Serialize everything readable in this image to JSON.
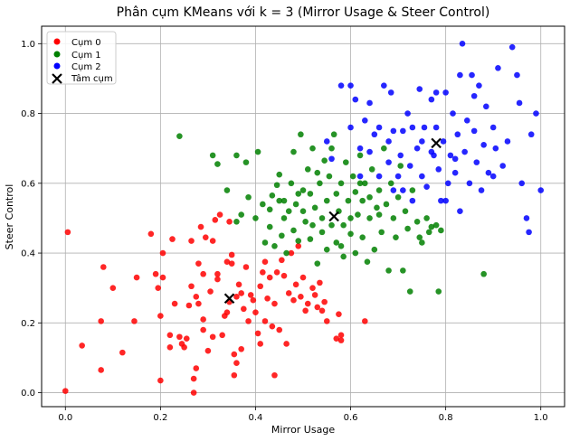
{
  "chart_data": {
    "type": "scatter",
    "title": "Phân cụm KMeans với k = 3 (Mirror Usage & Steer Control)",
    "xlabel": "Mirror Usage",
    "ylabel": "Steer Control",
    "xlim": [
      -0.05,
      1.05
    ],
    "ylim": [
      -0.04,
      1.05
    ],
    "xticks": [
      "0.0",
      "0.2",
      "0.4",
      "0.6",
      "0.8",
      "1.0"
    ],
    "yticks": [
      "0.0",
      "0.2",
      "0.4",
      "0.6",
      "0.8",
      "1.0"
    ],
    "grid": true,
    "legend_position": "top-left",
    "series": [
      {
        "name": "Cụm 0",
        "color": "#ff0000",
        "points": [
          [
            0.0,
            0.005
          ],
          [
            0.005,
            0.46
          ],
          [
            0.035,
            0.135
          ],
          [
            0.075,
            0.065
          ],
          [
            0.075,
            0.205
          ],
          [
            0.08,
            0.36
          ],
          [
            0.1,
            0.3
          ],
          [
            0.12,
            0.115
          ],
          [
            0.145,
            0.205
          ],
          [
            0.15,
            0.33
          ],
          [
            0.18,
            0.455
          ],
          [
            0.19,
            0.34
          ],
          [
            0.195,
            0.3
          ],
          [
            0.2,
            0.035
          ],
          [
            0.2,
            0.22
          ],
          [
            0.205,
            0.33
          ],
          [
            0.205,
            0.4
          ],
          [
            0.22,
            0.13
          ],
          [
            0.22,
            0.165
          ],
          [
            0.225,
            0.44
          ],
          [
            0.23,
            0.255
          ],
          [
            0.24,
            0.16
          ],
          [
            0.245,
            0.14
          ],
          [
            0.25,
            0.13
          ],
          [
            0.255,
            0.155
          ],
          [
            0.26,
            0.25
          ],
          [
            0.265,
            0.435
          ],
          [
            0.265,
            0.305
          ],
          [
            0.27,
            0.04
          ],
          [
            0.27,
            0.0
          ],
          [
            0.275,
            0.275
          ],
          [
            0.275,
            0.07
          ],
          [
            0.28,
            0.255
          ],
          [
            0.28,
            0.37
          ],
          [
            0.285,
            0.475
          ],
          [
            0.29,
            0.34
          ],
          [
            0.29,
            0.21
          ],
          [
            0.29,
            0.18
          ],
          [
            0.295,
            0.445
          ],
          [
            0.3,
            0.12
          ],
          [
            0.305,
            0.29
          ],
          [
            0.31,
            0.435
          ],
          [
            0.31,
            0.16
          ],
          [
            0.315,
            0.495
          ],
          [
            0.32,
            0.34
          ],
          [
            0.32,
            0.325
          ],
          [
            0.325,
            0.51
          ],
          [
            0.33,
            0.165
          ],
          [
            0.335,
            0.22
          ],
          [
            0.34,
            0.23
          ],
          [
            0.345,
            0.26
          ],
          [
            0.345,
            0.49
          ],
          [
            0.35,
            0.395
          ],
          [
            0.35,
            0.37
          ],
          [
            0.355,
            0.05
          ],
          [
            0.355,
            0.11
          ],
          [
            0.36,
            0.085
          ],
          [
            0.36,
            0.275
          ],
          [
            0.365,
            0.31
          ],
          [
            0.37,
            0.285
          ],
          [
            0.37,
            0.125
          ],
          [
            0.375,
            0.24
          ],
          [
            0.38,
            0.36
          ],
          [
            0.385,
            0.205
          ],
          [
            0.39,
            0.28
          ],
          [
            0.395,
            0.265
          ],
          [
            0.4,
            0.23
          ],
          [
            0.405,
            0.17
          ],
          [
            0.41,
            0.305
          ],
          [
            0.41,
            0.14
          ],
          [
            0.415,
            0.345
          ],
          [
            0.42,
            0.375
          ],
          [
            0.42,
            0.205
          ],
          [
            0.425,
            0.27
          ],
          [
            0.43,
            0.33
          ],
          [
            0.435,
            0.19
          ],
          [
            0.44,
            0.255
          ],
          [
            0.44,
            0.05
          ],
          [
            0.445,
            0.345
          ],
          [
            0.45,
            0.18
          ],
          [
            0.455,
            0.38
          ],
          [
            0.46,
            0.335
          ],
          [
            0.465,
            0.14
          ],
          [
            0.47,
            0.285
          ],
          [
            0.475,
            0.4
          ],
          [
            0.48,
            0.265
          ],
          [
            0.485,
            0.31
          ],
          [
            0.49,
            0.42
          ],
          [
            0.495,
            0.275
          ],
          [
            0.5,
            0.33
          ],
          [
            0.505,
            0.235
          ],
          [
            0.51,
            0.255
          ],
          [
            0.52,
            0.3
          ],
          [
            0.525,
            0.28
          ],
          [
            0.53,
            0.245
          ],
          [
            0.535,
            0.315
          ],
          [
            0.54,
            0.235
          ],
          [
            0.545,
            0.26
          ],
          [
            0.55,
            0.205
          ],
          [
            0.575,
            0.225
          ],
          [
            0.57,
            0.155
          ],
          [
            0.58,
            0.165
          ],
          [
            0.58,
            0.15
          ],
          [
            0.63,
            0.205
          ],
          [
            0.34,
            0.375
          ]
        ]
      },
      {
        "name": "Cụm 1",
        "color": "#008000",
        "points": [
          [
            0.24,
            0.735
          ],
          [
            0.31,
            0.68
          ],
          [
            0.32,
            0.655
          ],
          [
            0.34,
            0.58
          ],
          [
            0.36,
            0.68
          ],
          [
            0.36,
            0.49
          ],
          [
            0.37,
            0.51
          ],
          [
            0.38,
            0.66
          ],
          [
            0.385,
            0.56
          ],
          [
            0.4,
            0.5
          ],
          [
            0.405,
            0.69
          ],
          [
            0.415,
            0.54
          ],
          [
            0.42,
            0.43
          ],
          [
            0.43,
            0.475
          ],
          [
            0.43,
            0.525
          ],
          [
            0.435,
            0.565
          ],
          [
            0.44,
            0.42
          ],
          [
            0.445,
            0.595
          ],
          [
            0.45,
            0.625
          ],
          [
            0.455,
            0.45
          ],
          [
            0.46,
            0.5
          ],
          [
            0.46,
            0.55
          ],
          [
            0.465,
            0.4
          ],
          [
            0.47,
            0.52
          ],
          [
            0.475,
            0.6
          ],
          [
            0.48,
            0.465
          ],
          [
            0.48,
            0.69
          ],
          [
            0.485,
            0.54
          ],
          [
            0.49,
            0.435
          ],
          [
            0.49,
            0.57
          ],
          [
            0.495,
            0.74
          ],
          [
            0.5,
            0.58
          ],
          [
            0.5,
            0.52
          ],
          [
            0.505,
            0.49
          ],
          [
            0.51,
            0.64
          ],
          [
            0.515,
            0.44
          ],
          [
            0.515,
            0.57
          ],
          [
            0.52,
            0.7
          ],
          [
            0.525,
            0.53
          ],
          [
            0.53,
            0.63
          ],
          [
            0.53,
            0.37
          ],
          [
            0.535,
            0.6
          ],
          [
            0.54,
            0.5
          ],
          [
            0.54,
            0.46
          ],
          [
            0.545,
            0.665
          ],
          [
            0.55,
            0.55
          ],
          [
            0.55,
            0.41
          ],
          [
            0.555,
            0.62
          ],
          [
            0.56,
            0.7
          ],
          [
            0.56,
            0.48
          ],
          [
            0.565,
            0.74
          ],
          [
            0.57,
            0.57
          ],
          [
            0.57,
            0.43
          ],
          [
            0.575,
            0.52
          ],
          [
            0.58,
            0.6
          ],
          [
            0.585,
            0.48
          ],
          [
            0.585,
            0.39
          ],
          [
            0.59,
            0.66
          ],
          [
            0.595,
            0.55
          ],
          [
            0.6,
            0.5
          ],
          [
            0.6,
            0.455
          ],
          [
            0.605,
            0.62
          ],
          [
            0.61,
            0.575
          ],
          [
            0.61,
            0.4
          ],
          [
            0.615,
            0.51
          ],
          [
            0.62,
            0.68
          ],
          [
            0.625,
            0.55
          ],
          [
            0.625,
            0.445
          ],
          [
            0.63,
            0.6
          ],
          [
            0.635,
            0.375
          ],
          [
            0.64,
            0.56
          ],
          [
            0.64,
            0.5
          ],
          [
            0.645,
            0.64
          ],
          [
            0.65,
            0.41
          ],
          [
            0.655,
            0.53
          ],
          [
            0.66,
            0.58
          ],
          [
            0.665,
            0.46
          ],
          [
            0.67,
            0.7
          ],
          [
            0.675,
            0.54
          ],
          [
            0.68,
            0.35
          ],
          [
            0.685,
            0.6
          ],
          [
            0.69,
            0.5
          ],
          [
            0.695,
            0.445
          ],
          [
            0.7,
            0.56
          ],
          [
            0.705,
            0.65
          ],
          [
            0.71,
            0.35
          ],
          [
            0.715,
            0.52
          ],
          [
            0.72,
            0.47
          ],
          [
            0.725,
            0.29
          ],
          [
            0.73,
            0.58
          ],
          [
            0.74,
            0.49
          ],
          [
            0.745,
            0.445
          ],
          [
            0.75,
            0.43
          ],
          [
            0.76,
            0.5
          ],
          [
            0.765,
            0.46
          ],
          [
            0.77,
            0.475
          ],
          [
            0.78,
            0.48
          ],
          [
            0.785,
            0.29
          ],
          [
            0.79,
            0.465
          ],
          [
            0.88,
            0.34
          ],
          [
            0.45,
            0.55
          ],
          [
            0.52,
            0.48
          ],
          [
            0.58,
            0.42
          ],
          [
            0.62,
            0.6
          ],
          [
            0.66,
            0.51
          ]
        ]
      },
      {
        "name": "Cụm 2",
        "color": "#0000ff",
        "points": [
          [
            0.55,
            0.72
          ],
          [
            0.56,
            0.67
          ],
          [
            0.58,
            0.88
          ],
          [
            0.6,
            0.76
          ],
          [
            0.61,
            0.84
          ],
          [
            0.62,
            0.7
          ],
          [
            0.63,
            0.78
          ],
          [
            0.64,
            0.69
          ],
          [
            0.65,
            0.74
          ],
          [
            0.66,
            0.62
          ],
          [
            0.67,
            0.88
          ],
          [
            0.68,
            0.66
          ],
          [
            0.685,
            0.86
          ],
          [
            0.69,
            0.75
          ],
          [
            0.7,
            0.62
          ],
          [
            0.705,
            0.68
          ],
          [
            0.71,
            0.58
          ],
          [
            0.72,
            0.8
          ],
          [
            0.725,
            0.65
          ],
          [
            0.73,
            0.55
          ],
          [
            0.74,
            0.7
          ],
          [
            0.745,
            0.87
          ],
          [
            0.75,
            0.62
          ],
          [
            0.755,
            0.76
          ],
          [
            0.76,
            0.59
          ],
          [
            0.77,
            0.84
          ],
          [
            0.775,
            0.68
          ],
          [
            0.78,
            0.76
          ],
          [
            0.785,
            0.64
          ],
          [
            0.79,
            0.55
          ],
          [
            0.795,
            0.72
          ],
          [
            0.8,
            0.86
          ],
          [
            0.805,
            0.6
          ],
          [
            0.81,
            0.68
          ],
          [
            0.815,
            0.8
          ],
          [
            0.82,
            0.63
          ],
          [
            0.825,
            0.74
          ],
          [
            0.83,
            0.52
          ],
          [
            0.835,
            1.0
          ],
          [
            0.84,
            0.69
          ],
          [
            0.845,
            0.78
          ],
          [
            0.85,
            0.6
          ],
          [
            0.855,
            0.91
          ],
          [
            0.86,
            0.75
          ],
          [
            0.865,
            0.66
          ],
          [
            0.87,
            0.88
          ],
          [
            0.875,
            0.58
          ],
          [
            0.88,
            0.71
          ],
          [
            0.885,
            0.82
          ],
          [
            0.89,
            0.63
          ],
          [
            0.9,
            0.76
          ],
          [
            0.905,
            0.7
          ],
          [
            0.91,
            0.93
          ],
          [
            0.92,
            0.65
          ],
          [
            0.93,
            0.72
          ],
          [
            0.94,
            0.99
          ],
          [
            0.95,
            0.91
          ],
          [
            0.955,
            0.83
          ],
          [
            0.96,
            0.6
          ],
          [
            0.97,
            0.5
          ],
          [
            0.975,
            0.46
          ],
          [
            0.98,
            0.74
          ],
          [
            0.99,
            0.8
          ],
          [
            1.0,
            0.58
          ],
          [
            0.78,
            0.86
          ],
          [
            0.8,
            0.55
          ],
          [
            0.83,
            0.91
          ],
          [
            0.73,
            0.76
          ],
          [
            0.69,
            0.58
          ],
          [
            0.66,
            0.76
          ],
          [
            0.62,
            0.62
          ],
          [
            0.6,
            0.88
          ],
          [
            0.64,
            0.83
          ],
          [
            0.77,
            0.69
          ],
          [
            0.86,
            0.85
          ],
          [
            0.9,
            0.62
          ],
          [
            0.82,
            0.67
          ],
          [
            0.75,
            0.72
          ],
          [
            0.71,
            0.75
          ],
          [
            0.68,
            0.72
          ]
        ]
      }
    ],
    "centroids": {
      "name": "Tâm cụm",
      "color": "#000000",
      "points": [
        [
          0.345,
          0.27
        ],
        [
          0.565,
          0.505
        ],
        [
          0.78,
          0.715
        ]
      ]
    }
  }
}
